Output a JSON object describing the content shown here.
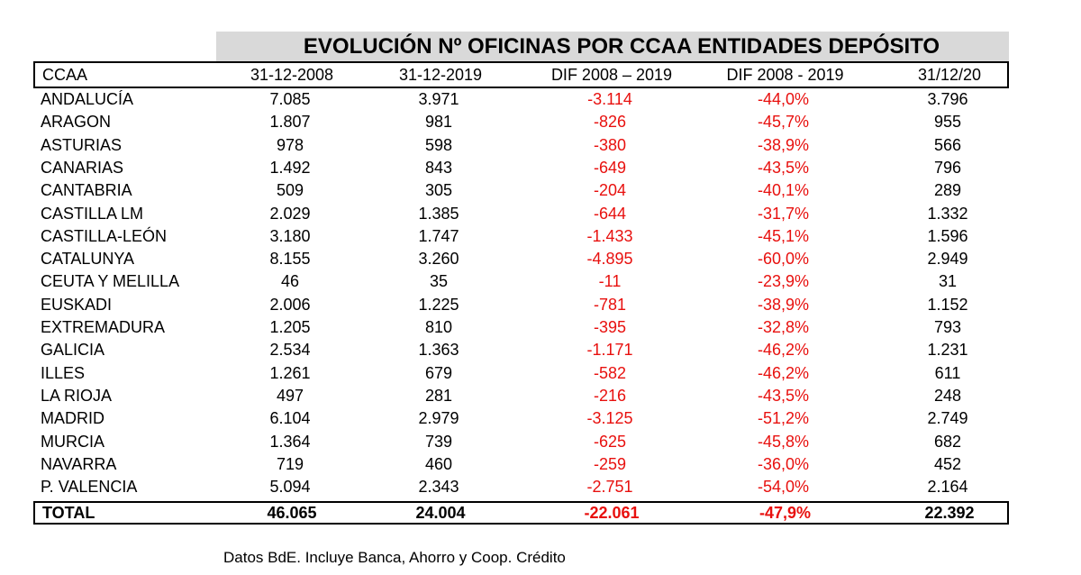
{
  "title": "EVOLUCIÓN Nº OFICINAS POR CCAA ENTIDADES DEPÓSITO",
  "headers": [
    "CCAA",
    "31-12-2008",
    "31-12-2019",
    "DIF 2008 – 2019",
    "DIF 2008 - 2019",
    "31/12/20"
  ],
  "rows": [
    [
      "ANDALUCÍA",
      "7.085",
      "3.971",
      "-3.114",
      "-44,0%",
      "3.796"
    ],
    [
      "ARAGON",
      "1.807",
      "981",
      "-826",
      "-45,7%",
      "955"
    ],
    [
      "ASTURIAS",
      "978",
      "598",
      "-380",
      "-38,9%",
      "566"
    ],
    [
      "CANARIAS",
      "1.492",
      "843",
      "-649",
      "-43,5%",
      "796"
    ],
    [
      "CANTABRIA",
      "509",
      "305",
      "-204",
      "-40,1%",
      "289"
    ],
    [
      "CASTILLA LM",
      "2.029",
      "1.385",
      "-644",
      "-31,7%",
      "1.332"
    ],
    [
      "CASTILLA-LEÓN",
      "3.180",
      "1.747",
      "-1.433",
      "-45,1%",
      "1.596"
    ],
    [
      "CATALUNYA",
      "8.155",
      "3.260",
      "-4.895",
      "-60,0%",
      "2.949"
    ],
    [
      "CEUTA Y MELILLA",
      "46",
      "35",
      "-11",
      "-23,9%",
      "31"
    ],
    [
      "EUSKADI",
      "2.006",
      "1.225",
      "-781",
      "-38,9%",
      "1.152"
    ],
    [
      "EXTREMADURA",
      "1.205",
      "810",
      "-395",
      "-32,8%",
      "793"
    ],
    [
      "GALICIA",
      "2.534",
      "1.363",
      "-1.171",
      "-46,2%",
      "1.231"
    ],
    [
      "ILLES",
      "1.261",
      "679",
      "-582",
      "-46,2%",
      "611"
    ],
    [
      "LA RIOJA",
      "497",
      "281",
      "-216",
      "-43,5%",
      "248"
    ],
    [
      "MADRID",
      "6.104",
      "2.979",
      "-3.125",
      "-51,2%",
      "2.749"
    ],
    [
      "MURCIA",
      "1.364",
      "739",
      "-625",
      "-45,8%",
      "682"
    ],
    [
      "NAVARRA",
      "719",
      "460",
      "-259",
      "-36,0%",
      "452"
    ],
    [
      "P. VALENCIA",
      "5.094",
      "2.343",
      "-2.751",
      "-54,0%",
      "2.164"
    ]
  ],
  "total": [
    "TOTAL",
    "46.065",
    "24.004",
    "-22.061",
    "-47,9%",
    "22.392"
  ],
  "footnote": "Datos BdE. Incluye Banca, Ahorro y Coop. Crédito",
  "colors": {
    "negative": "#e8100e",
    "title_bg": "#d9d9d9"
  }
}
